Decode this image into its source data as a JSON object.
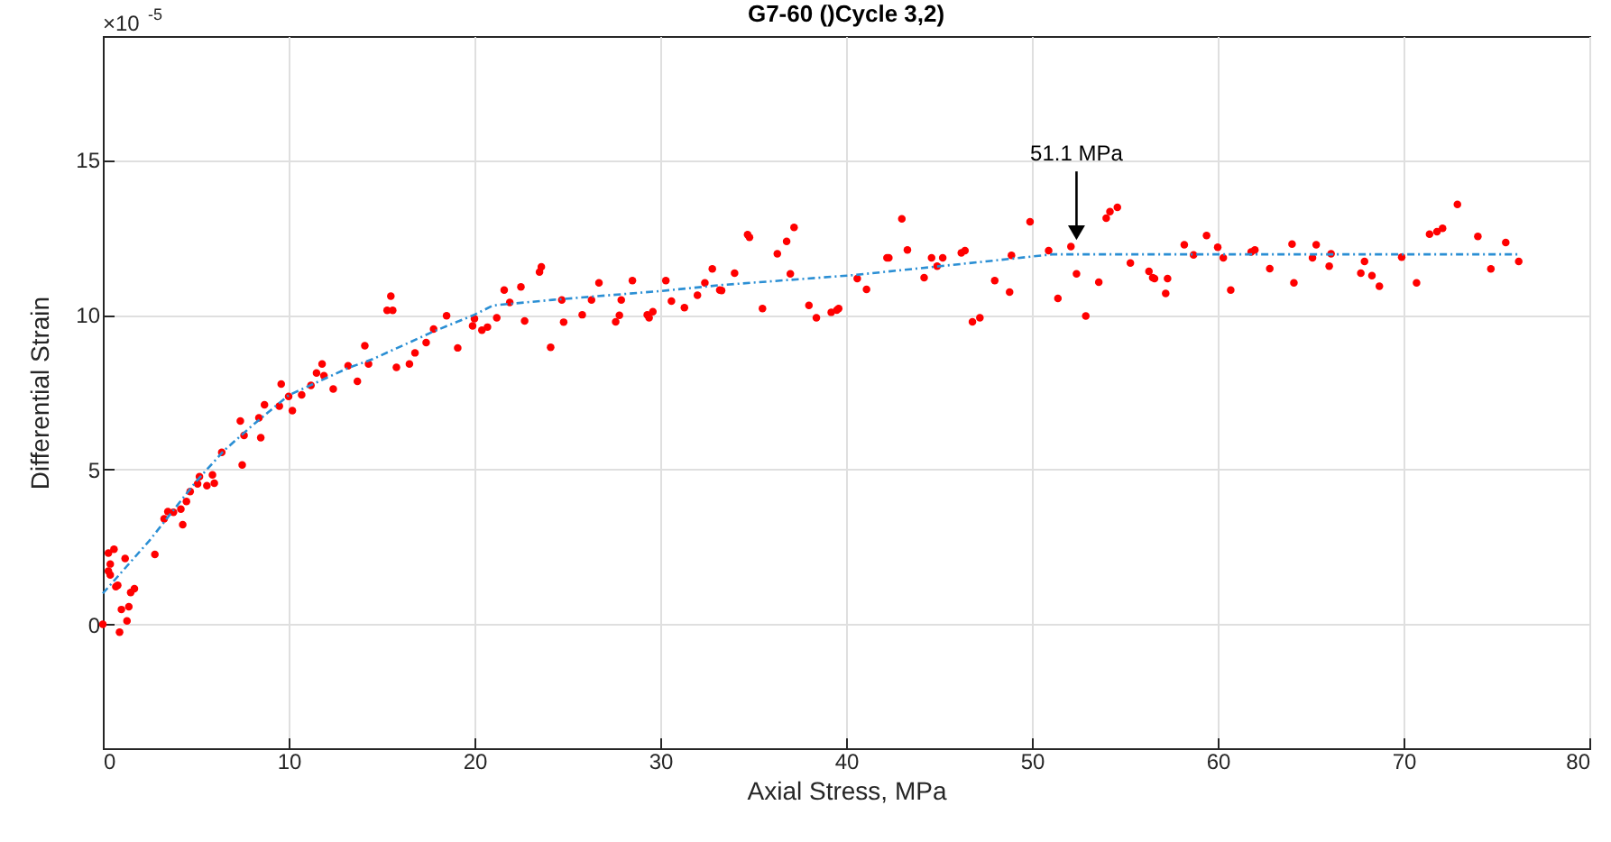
{
  "chart_data": {
    "type": "scatter",
    "title": "G7-60 ()Cycle 3,2)",
    "xlabel": "Axial Stress, MPa",
    "ylabel": "Differential Strain",
    "annotations": [
      "×10$^{-5}$",
      {
        "text": "51.1 MPa",
        "x": 52.4,
        "y": 12.3
      }
    ],
    "xlim": [
      0,
      80
    ],
    "xticks": [
      0,
      10,
      20,
      30,
      40,
      50,
      60,
      70,
      80
    ],
    "ylim": [
      -4,
      19
    ],
    "yticks": [
      0,
      5,
      10,
      15
    ],
    "grid": true,
    "marker": "circle",
    "line_style": "dashed",
    "series": [
      {
        "color": "#ff0000",
        "x": [
          0,
          0.9,
          1.3,
          1.0,
          1.4,
          1.5,
          1.7,
          0.7,
          0.8,
          0.3,
          0.4,
          0.4,
          0.3,
          0.6,
          1.2,
          2.8,
          3.3,
          3.5,
          3.8,
          4.2,
          4.3,
          4.5,
          4.7,
          5.1,
          5.2,
          5.6,
          6.0,
          5.9,
          6.4,
          7.5,
          7.4,
          7.6,
          8.5,
          8.4,
          8.7,
          9.5,
          9.6,
          10.0,
          10.2,
          10.7,
          11.2,
          11.5,
          11.8,
          11.9,
          12.4,
          13.2,
          13.7,
          14.1,
          14.3,
          15.5,
          15.3,
          15.6,
          15.8,
          16.5,
          16.8,
          17.4,
          17.8,
          18.5,
          19.1,
          19.9,
          20.0,
          20.4,
          20.7,
          21.2,
          21.6,
          21.9,
          22.5,
          22.7,
          23.5,
          23.6,
          24.1,
          24.7,
          24.8,
          25.8,
          26.3,
          26.7,
          27.6,
          27.8,
          27.9,
          28.5,
          29.3,
          29.4,
          29.6,
          30.3,
          30.6,
          31.3,
          32.0,
          32.4,
          32.8,
          33.2,
          33.3,
          34.0,
          34.7,
          34.8,
          35.5,
          36.3,
          36.8,
          37.2,
          37.0,
          38.0,
          38.4,
          39.2,
          39.5,
          39.6,
          40.6,
          41.1,
          42.2,
          42.3,
          43.0,
          43.3,
          44.2,
          44.6,
          44.9,
          45.2,
          46.2,
          46.4,
          46.8,
          47.2,
          48.0,
          48.8,
          48.9,
          49.9,
          50.9,
          51.4,
          52.1,
          52.4,
          52.9,
          53.6,
          54.0,
          54.2,
          54.6,
          55.3,
          56.3,
          56.5,
          56.6,
          57.3,
          57.2,
          58.2,
          58.7,
          59.4,
          60.0,
          60.3,
          60.7,
          61.8,
          62.0,
          62.8,
          64.0,
          64.1,
          65.1,
          65.3,
          66.0,
          66.1,
          67.7,
          67.9,
          68.3,
          68.7,
          69.9,
          70.7,
          71.4,
          71.8,
          72.1,
          72.9,
          74.0,
          74.7,
          75.5,
          76.2
        ],
        "values": [
          0,
          -0.25,
          0.11,
          0.48,
          0.57,
          1.03,
          1.15,
          1.22,
          1.26,
          1.72,
          1.6,
          1.95,
          2.3,
          2.43,
          2.13,
          2.26,
          3.41,
          3.64,
          3.62,
          3.72,
          3.22,
          3.97,
          4.29,
          4.54,
          4.77,
          4.48,
          4.56,
          4.83,
          5.56,
          5.15,
          6.57,
          6.1,
          6.03,
          6.67,
          7.09,
          7.05,
          7.76,
          7.36,
          6.9,
          7.41,
          7.72,
          8.12,
          8.41,
          8.03,
          7.6,
          8.35,
          7.85,
          9.0,
          8.41,
          10.6,
          10.14,
          10.14,
          8.3,
          8.41,
          8.77,
          9.1,
          9.54,
          9.97,
          8.93,
          9.64,
          9.87,
          9.5,
          9.6,
          9.9,
          10.8,
          10.4,
          10.9,
          9.8,
          11.38,
          11.55,
          8.95,
          10.48,
          9.76,
          10.0,
          10.48,
          11.03,
          9.77,
          9.98,
          10.48,
          11.1,
          10.0,
          9.9,
          10.1,
          11.1,
          10.44,
          10.23,
          10.63,
          11.03,
          11.48,
          10.8,
          10.78,
          11.34,
          12.59,
          12.5,
          10.2,
          11.97,
          12.37,
          12.82,
          11.32,
          10.3,
          9.9,
          10.08,
          10.15,
          10.2,
          11.17,
          10.82,
          11.84,
          11.84,
          13.1,
          12.09,
          11.2,
          11.84,
          11.57,
          11.84,
          12.0,
          12.07,
          9.77,
          9.9,
          11.1,
          10.73,
          11.92,
          13.0,
          12.07,
          10.53,
          12.2,
          11.32,
          9.96,
          11.05,
          13.12,
          13.33,
          13.47,
          11.67,
          11.4,
          11.2,
          11.17,
          11.17,
          10.69,
          12.26,
          11.93,
          12.56,
          12.18,
          11.84,
          10.8,
          12.03,
          12.09,
          11.49,
          12.28,
          11.03,
          11.84,
          12.26,
          11.57,
          11.97,
          11.34,
          11.72,
          11.26,
          10.92,
          11.86,
          11.03,
          12.6,
          12.68,
          12.79,
          13.56,
          12.53,
          11.48,
          12.33,
          11.72
        ]
      },
      {
        "type": "line",
        "marker": "none",
        "color": "#2b8fd4",
        "x": [
          0,
          2.5,
          5,
          6.5,
          8,
          10,
          13.2,
          14.5,
          17.8,
          20,
          21,
          24.2,
          30.1,
          33.3,
          40.4,
          47.5,
          51.1,
          60,
          76.2
        ],
        "values": [
          1.0,
          2.7,
          4.6,
          5.6,
          6.4,
          7.4,
          8.28,
          8.56,
          9.46,
          10.0,
          10.3,
          10.48,
          10.77,
          10.96,
          11.28,
          11.72,
          11.95,
          11.95,
          11.95
        ]
      }
    ]
  }
}
